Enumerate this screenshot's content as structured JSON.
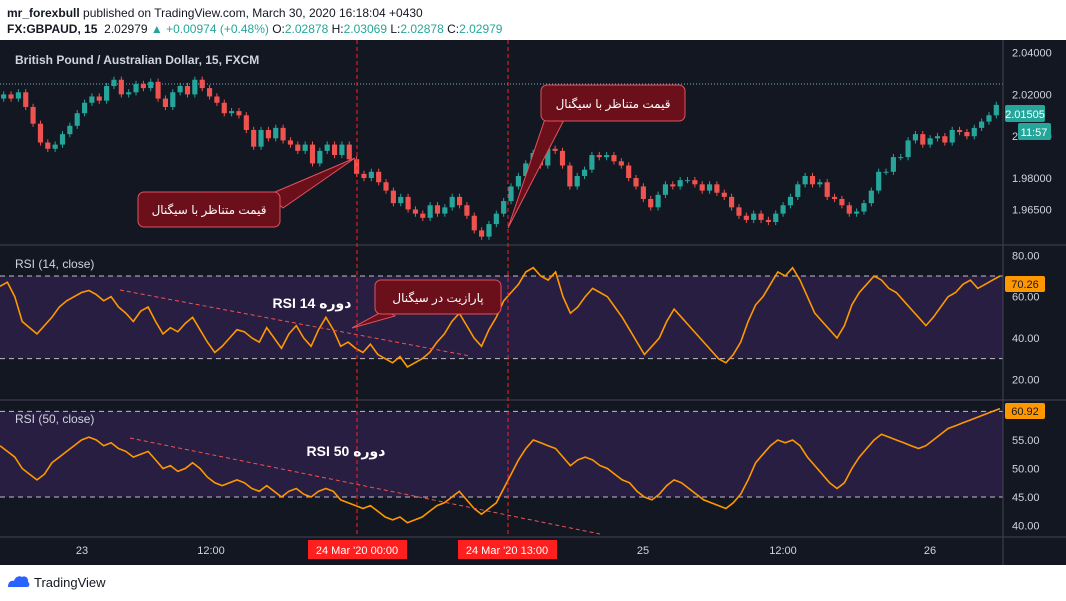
{
  "header": {
    "publisher": "mr_forexbull",
    "published_text": "published on TradingView.com, March 30, 2020 16:18:04 +0430",
    "symbol": "FX:GBPAUD, 15",
    "price": "2.02979",
    "change": "+0.00974 (+0.48%)",
    "o_label": "O:",
    "o_value": "2.02878",
    "h_label": "H:",
    "h_value": "2.03069",
    "l_label": "L:",
    "l_value": "2.02878",
    "c_label": "C:",
    "c_value": "2.02979"
  },
  "footer": {
    "brand": "TradingView"
  },
  "colors": {
    "background": "#131722",
    "up": "#26a69a",
    "down": "#ef5350",
    "rsi_line": "#ff9800",
    "rsi_band": "#2a1f45",
    "annotation_fill": "#6b0f1a",
    "annotation_border": "#e0525f",
    "marker": "#ff1f1f"
  },
  "chart_data": [
    {
      "type": "candlestick",
      "title": "British Pound / Australian Dollar, 15, FXCM",
      "ylim": [
        1.948,
        2.046
      ],
      "y_ticks": [
        "2.04000",
        "2.02000",
        "2.00000",
        "1.98000",
        "1.96500"
      ],
      "y_tick_values": [
        2.04,
        2.02,
        2.0,
        1.98,
        1.965
      ],
      "last_price_label": "2.01505",
      "countdown_label": "11:57",
      "close_series": [
        2.02,
        2.018,
        2.021,
        2.014,
        2.006,
        1.997,
        1.994,
        1.996,
        2.001,
        2.005,
        2.011,
        2.016,
        2.019,
        2.017,
        2.024,
        2.027,
        2.02,
        2.021,
        2.025,
        2.023,
        2.026,
        2.018,
        2.014,
        2.021,
        2.024,
        2.02,
        2.027,
        2.023,
        2.019,
        2.016,
        2.011,
        2.012,
        2.01,
        2.003,
        1.995,
        2.003,
        1.999,
        2.004,
        1.998,
        1.996,
        1.993,
        1.996,
        1.987,
        1.993,
        1.996,
        1.991,
        1.996,
        1.989,
        1.982,
        1.98,
        1.983,
        1.978,
        1.974,
        1.968,
        1.971,
        1.965,
        1.963,
        1.961,
        1.967,
        1.963,
        1.966,
        1.971,
        1.967,
        1.962,
        1.955,
        1.952,
        1.958,
        1.963,
        1.969,
        1.976,
        1.981,
        1.987,
        1.992,
        1.986,
        1.994,
        1.993,
        1.986,
        1.976,
        1.981,
        1.984,
        1.991,
        1.99,
        1.991,
        1.988,
        1.986,
        1.98,
        1.976,
        1.97,
        1.966,
        1.972,
        1.977,
        1.976,
        1.979,
        1.979,
        1.977,
        1.974,
        1.977,
        1.973,
        1.971,
        1.966,
        1.962,
        1.96,
        1.963,
        1.96,
        1.959,
        1.963,
        1.967,
        1.971,
        1.977,
        1.981,
        1.977,
        1.978,
        1.971,
        1.97,
        1.967,
        1.963,
        1.964,
        1.968,
        1.974,
        1.983,
        1.983,
        1.99,
        1.99,
        1.998,
        2.001,
        1.996,
        1.999,
        2.0,
        1.997,
        2.003,
        2.002,
        2.0,
        2.004,
        2.007,
        2.01,
        2.015
      ]
    },
    {
      "type": "line",
      "title": "RSI (14, close)",
      "ylim": [
        10,
        85
      ],
      "y_ticks": [
        "80.00",
        "60.00",
        "40.00",
        "20.00"
      ],
      "y_tick_values": [
        80,
        60,
        40,
        20
      ],
      "upper_band": 70,
      "lower_band": 30,
      "last_value_label": "70.26",
      "values": [
        65,
        67,
        60,
        48,
        45,
        42,
        46,
        50,
        55,
        58,
        60,
        62,
        63,
        61,
        58,
        60,
        55,
        52,
        48,
        53,
        55,
        48,
        42,
        45,
        43,
        47,
        50,
        44,
        38,
        33,
        36,
        40,
        44,
        43,
        40,
        38,
        45,
        40,
        35,
        42,
        46,
        40,
        36,
        44,
        50,
        44,
        36,
        38,
        35,
        33,
        37,
        32,
        30,
        28,
        31,
        26,
        28,
        30,
        33,
        38,
        42,
        48,
        52,
        46,
        40,
        36,
        44,
        50,
        58,
        62,
        66,
        72,
        74,
        70,
        68,
        72,
        60,
        52,
        55,
        60,
        64,
        62,
        60,
        55,
        50,
        44,
        38,
        32,
        36,
        40,
        48,
        54,
        50,
        46,
        42,
        38,
        34,
        30,
        28,
        32,
        38,
        48,
        56,
        60,
        66,
        72,
        70,
        74,
        68,
        60,
        52,
        48,
        44,
        40,
        46,
        56,
        62,
        66,
        70,
        68,
        64,
        62,
        58,
        54,
        50,
        46,
        50,
        55,
        60,
        62,
        66,
        68,
        64,
        66,
        68,
        70
      ]
    },
    {
      "type": "line",
      "title": "RSI (50, close)",
      "ylim": [
        38,
        62
      ],
      "y_ticks": [
        "55.00",
        "50.00",
        "45.00",
        "40.00"
      ],
      "y_tick_values": [
        55,
        50,
        45,
        40
      ],
      "upper_band": 60,
      "lower_band": 45,
      "last_value_label": "60.92",
      "values": [
        54,
        53,
        52,
        50,
        49,
        48,
        49,
        51,
        52,
        53,
        54,
        55,
        55.5,
        55,
        54,
        54.5,
        53.5,
        53,
        52,
        52.5,
        53,
        51.5,
        50,
        50.5,
        49.5,
        50,
        51,
        50,
        48.5,
        47.5,
        47,
        47.5,
        48,
        47.5,
        46.5,
        46,
        47,
        46,
        45,
        46,
        46.5,
        45.5,
        45,
        46,
        46.5,
        46,
        44.5,
        44,
        43.5,
        43,
        43.5,
        42.5,
        41.5,
        41,
        41.5,
        40.5,
        41,
        41.5,
        42.5,
        43.5,
        44,
        45,
        46,
        44.5,
        43,
        42,
        43,
        44,
        46.5,
        49,
        51.5,
        53.5,
        55,
        54.5,
        54,
        53.5,
        52,
        50.5,
        51.5,
        52,
        51.5,
        50.5,
        50,
        49,
        48,
        47.5,
        46,
        45,
        44.5,
        45.5,
        47,
        48,
        47.5,
        46.5,
        45.5,
        44.5,
        44,
        43.5,
        43,
        44,
        45.5,
        48,
        51,
        52.5,
        54,
        55,
        54.5,
        55,
        54,
        52,
        50.5,
        49,
        47.5,
        46.5,
        47.5,
        50,
        52,
        53.5,
        55,
        56,
        55.5,
        55,
        54.5,
        54,
        53.5,
        54,
        55,
        56,
        57,
        57.5,
        58,
        58.5,
        59,
        59.5,
        60,
        60.5
      ]
    }
  ],
  "x_axis": {
    "ticks": [
      "23",
      "12:00",
      "25",
      "12:00",
      "26"
    ],
    "highlight_labels": [
      "24 Mar '20  00:00",
      "24 Mar '20  13:00"
    ]
  },
  "annotations": {
    "price_callout_1": "قیمت متناظر با سیگنال",
    "price_callout_2": "قیمت متناظر با سیگنال",
    "rsi14_callout": "پارازیت در سیگنال",
    "rsi14_label": "RSI 14 دوره",
    "rsi50_label": "RSI 50 دوره"
  }
}
